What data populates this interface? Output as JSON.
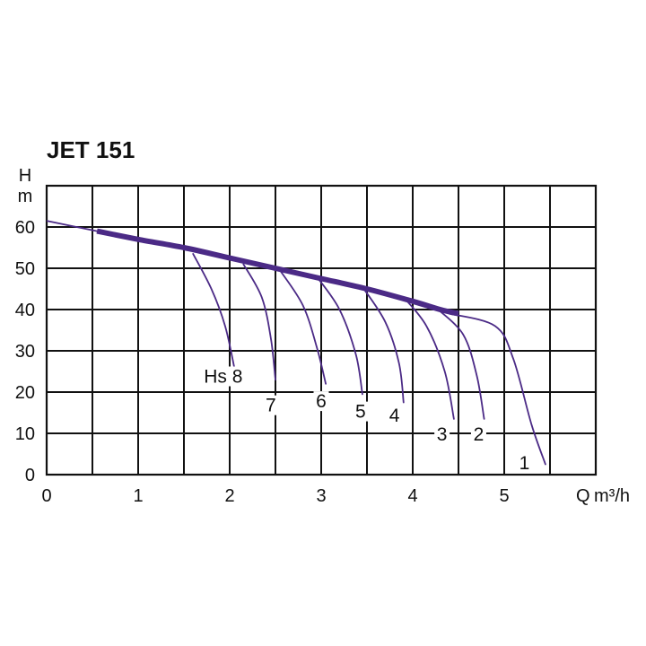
{
  "chart_data": {
    "type": "line",
    "title": "JET 151",
    "xlabel": "Q m³/h",
    "ylabel": "H m",
    "ylabel_parts": [
      "H",
      "m"
    ],
    "xlabel_parts": [
      "Q",
      "m³/h"
    ],
    "xlim": [
      0,
      6
    ],
    "ylim": [
      0,
      70
    ],
    "x_ticks": [
      0,
      1,
      2,
      3,
      4,
      5
    ],
    "x_tick_labels": [
      "0",
      "1",
      "2",
      "3",
      "4",
      "5"
    ],
    "y_ticks": [
      0,
      10,
      20,
      30,
      40,
      50,
      60
    ],
    "y_tick_labels": [
      "0",
      "10",
      "20",
      "30",
      "40",
      "50",
      "60"
    ],
    "grid": true,
    "line_color": "#4b2a86",
    "main_curve_color": "#4b2a86",
    "main_curve": {
      "x": [
        0,
        0.55,
        1.0,
        1.5,
        2.0,
        2.5,
        3.0,
        3.5,
        4.0,
        4.3,
        4.5
      ],
      "y": [
        61.5,
        59.0,
        57.0,
        55.0,
        52.5,
        50.0,
        47.5,
        45.0,
        42.0,
        40.0,
        39.0
      ]
    },
    "series": [
      {
        "name": "Hs 8",
        "x": [
          1.6,
          1.8,
          1.95,
          2.05
        ],
        "y": [
          53.5,
          45.0,
          36.0,
          26.0
        ]
      },
      {
        "name": "7",
        "x": [
          2.15,
          2.35,
          2.45,
          2.5
        ],
        "y": [
          51.0,
          43.0,
          33.0,
          23.0
        ]
      },
      {
        "name": "6",
        "x": [
          2.55,
          2.8,
          2.95,
          3.05
        ],
        "y": [
          49.5,
          41.0,
          31.0,
          22.0
        ]
      },
      {
        "name": "5",
        "x": [
          2.95,
          3.2,
          3.38,
          3.45
        ],
        "y": [
          48.0,
          40.0,
          29.0,
          19.5
        ]
      },
      {
        "name": "4",
        "x": [
          3.45,
          3.7,
          3.85,
          3.9
        ],
        "y": [
          45.5,
          37.0,
          27.0,
          17.5
        ]
      },
      {
        "name": "3",
        "x": [
          3.9,
          4.15,
          4.35,
          4.45
        ],
        "y": [
          43.0,
          36.0,
          25.0,
          13.5
        ]
      },
      {
        "name": "2",
        "x": [
          4.25,
          4.55,
          4.7,
          4.78
        ],
        "y": [
          40.5,
          34.0,
          24.0,
          13.5
        ]
      },
      {
        "name": "1",
        "x": [
          4.4,
          4.9,
          5.1,
          5.3,
          5.45
        ],
        "y": [
          39.0,
          36.0,
          28.0,
          12.0,
          2.5
        ]
      }
    ],
    "curve_labels": [
      {
        "text": "Hs 8",
        "x": 1.93,
        "y": 22.5
      },
      {
        "text": "7",
        "x": 2.45,
        "y": 15.5
      },
      {
        "text": "6",
        "x": 3.0,
        "y": 16.5
      },
      {
        "text": "5",
        "x": 3.43,
        "y": 14.0
      },
      {
        "text": "4",
        "x": 3.8,
        "y": 13.0
      },
      {
        "text": "3",
        "x": 4.32,
        "y": 8.5
      },
      {
        "text": "2",
        "x": 4.72,
        "y": 8.5
      },
      {
        "text": "1",
        "x": 5.22,
        "y": 1.5
      }
    ]
  }
}
